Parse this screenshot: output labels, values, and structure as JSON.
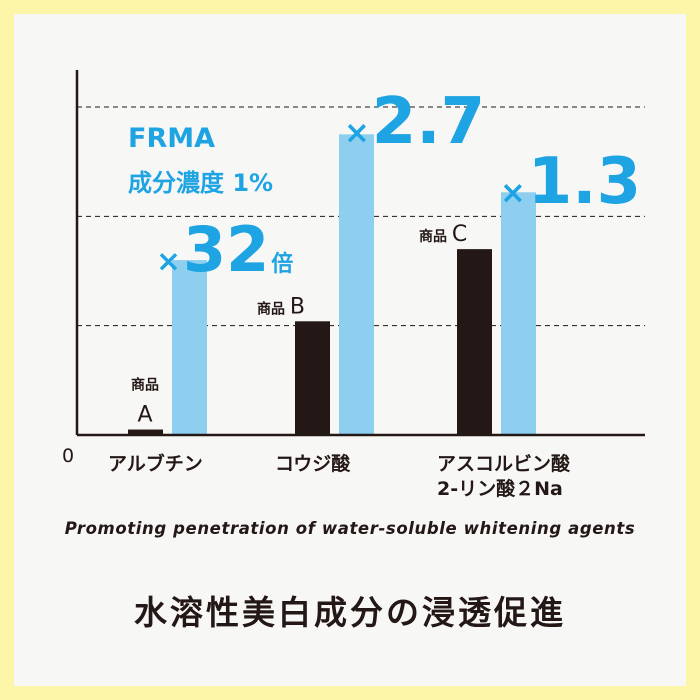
{
  "chart_data": {
    "type": "bar",
    "categories": [
      "アルブチン",
      "コウジ酸",
      "アスコルビン酸 2-リン酸２Na"
    ],
    "category_lines": [
      [
        "アルブチン"
      ],
      [
        "コウジ酸"
      ],
      [
        "アスコルビン酸",
        "2-リン酸２Na"
      ]
    ],
    "series": [
      {
        "color": "#231815",
        "values": [
          0.5,
          10.4,
          17.0
        ],
        "labels": [
          [
            "商品",
            "A"
          ],
          [
            "商品",
            "B"
          ],
          [
            "商品",
            "C"
          ]
        ]
      },
      {
        "color": "#8ecff0",
        "values": [
          16.0,
          27.5,
          22.2
        ],
        "labels": [
          [
            "×32",
            "倍"
          ],
          [
            "×2.7"
          ],
          [
            "×1.3"
          ]
        ]
      }
    ],
    "ylim": [
      0,
      30
    ],
    "yticks": [
      10,
      20,
      30
    ],
    "y_origin_label": "0",
    "grid": "dashed"
  },
  "annotation": {
    "line1": "FRMA",
    "line2": "成分濃度 1%"
  },
  "caption": "Promoting penetration of water-soluble whitening agents",
  "headline": "水溶性美白成分の浸透促進",
  "colors": {
    "background": "#fdf6a8",
    "card": "#f7f7f5",
    "accent": "#1ea3e3",
    "ink": "#231815",
    "light_bar": "#8ecff0"
  }
}
